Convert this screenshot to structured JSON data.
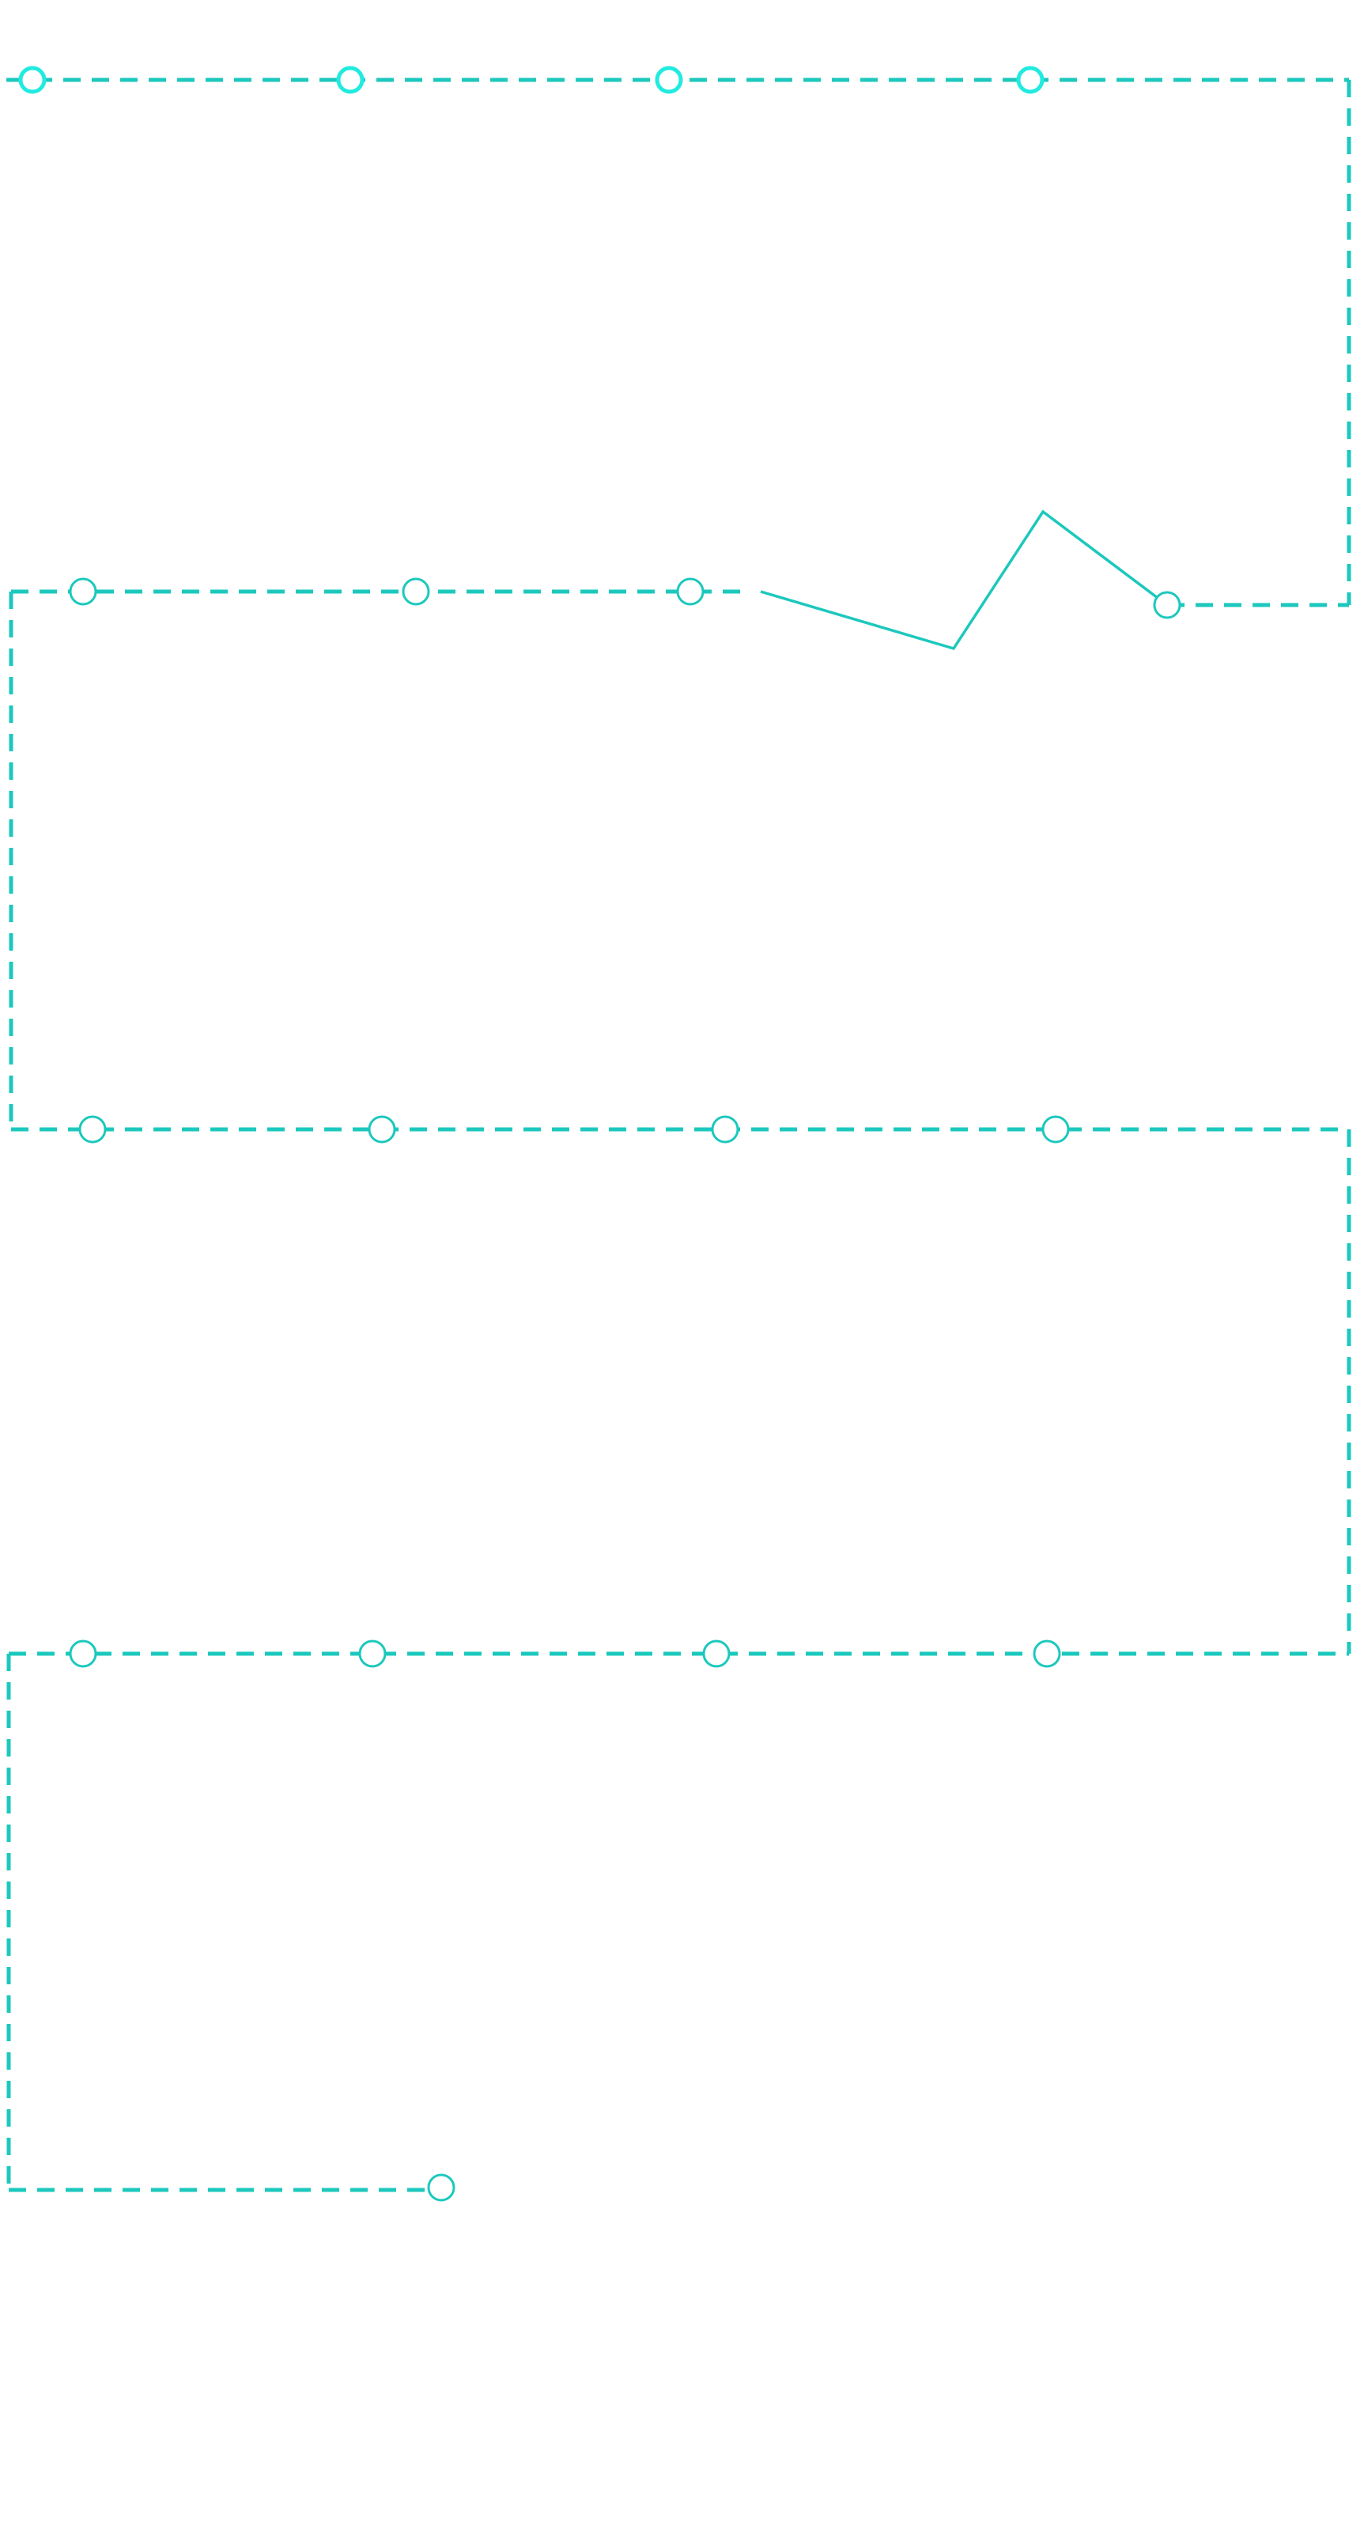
{
  "diagram": {
    "type": "roadmap-path",
    "colors": {
      "path": "#1cc8bd",
      "node_bright": "#21ebe0",
      "node_fill": "#ffffff",
      "background": "#ffffff"
    },
    "rows": [
      {
        "name": "row-1",
        "style": "dashed",
        "node_count": 4,
        "node_variant": "bright"
      },
      {
        "name": "row-2",
        "style": "dashed-with-zigzag",
        "node_count": 4,
        "node_variant": "normal"
      },
      {
        "name": "row-3",
        "style": "dashed",
        "node_count": 4,
        "node_variant": "normal"
      },
      {
        "name": "row-4",
        "style": "dashed",
        "node_count": 4,
        "node_variant": "normal"
      },
      {
        "name": "row-5",
        "style": "dashed",
        "node_count": 1,
        "node_variant": "normal"
      }
    ]
  }
}
